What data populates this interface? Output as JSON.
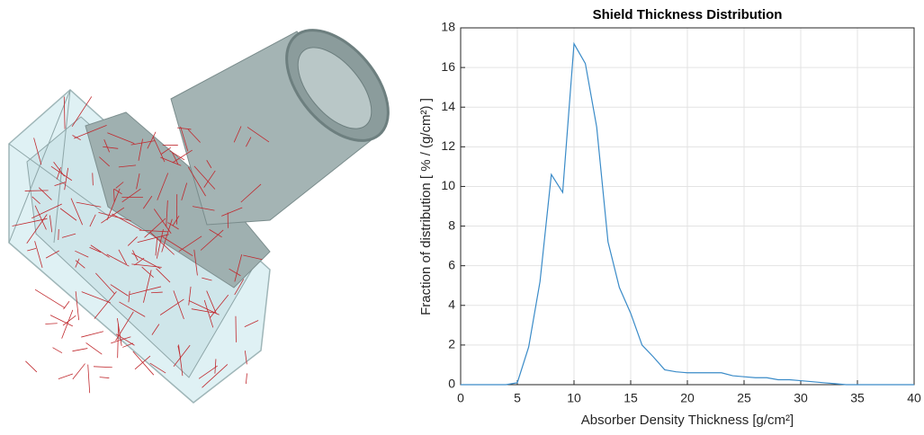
{
  "chart_data": {
    "type": "line",
    "title": "Shield Thickness Distribution",
    "x_label": "Absorber Density Thickness [g/cm²]",
    "y_label": "Fraction of distribution [ % / (g/cm²) ]",
    "x": [
      0,
      1,
      2,
      3,
      4,
      5,
      6,
      7,
      8,
      9,
      10,
      11,
      12,
      13,
      14,
      15,
      16,
      17,
      18,
      19,
      20,
      21,
      22,
      23,
      24,
      25,
      26,
      27,
      28,
      29,
      30,
      31,
      32,
      33,
      34,
      35,
      36,
      37,
      38,
      39,
      40
    ],
    "values": [
      0,
      0,
      0,
      0,
      0,
      0.1,
      1.9,
      5.2,
      10.6,
      9.7,
      17.2,
      16.2,
      13,
      7.2,
      4.9,
      3.6,
      2,
      1.4,
      0.75,
      0.65,
      0.6,
      0.6,
      0.6,
      0.6,
      0.45,
      0.4,
      0.35,
      0.35,
      0.25,
      0.25,
      0.2,
      0.15,
      0.1,
      0.05,
      0,
      0,
      0,
      0,
      0,
      0,
      0
    ],
    "color": "#3a8bc8",
    "xlim": [
      0,
      40
    ],
    "xticks": [
      0,
      5,
      10,
      15,
      20,
      25,
      30,
      35,
      40
    ],
    "ylim": [
      0,
      18
    ],
    "yticks": [
      0,
      2,
      4,
      6,
      8,
      10,
      12,
      14,
      16,
      18
    ],
    "grid": true
  }
}
